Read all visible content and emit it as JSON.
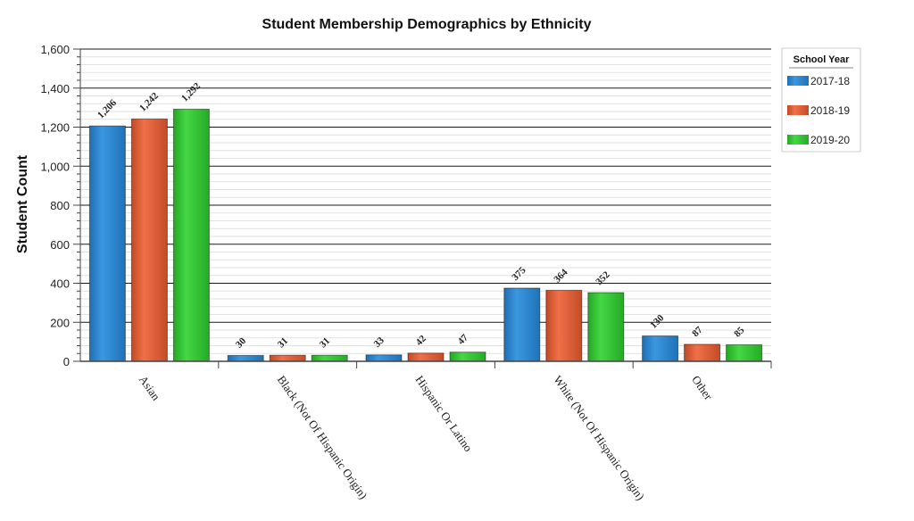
{
  "chart_data": {
    "type": "bar",
    "title": "Student Membership Demographics by Ethnicity",
    "xlabel": "",
    "ylabel": "Student Count",
    "ylim": [
      0,
      1600
    ],
    "yticks": [
      0,
      200,
      400,
      600,
      800,
      1000,
      1200,
      1400,
      1600
    ],
    "ytick_labels": [
      "0",
      "200",
      "400",
      "600",
      "800",
      "1,000",
      "1,200",
      "1,400",
      "1,600"
    ],
    "categories": [
      "Asian",
      "Black (Not Of Hispanic Origin)",
      "Hispanic Or Latino",
      "White (Not Of Hispanic Origin)",
      "Other"
    ],
    "series": [
      {
        "name": "2017-18",
        "color": "#2b8ad6",
        "values": [
          1206,
          30,
          33,
          375,
          130
        ],
        "labels": [
          "1,206",
          "30",
          "33",
          "375",
          "130"
        ]
      },
      {
        "name": "2018-19",
        "color": "#e2603a",
        "values": [
          1242,
          31,
          42,
          364,
          87
        ],
        "labels": [
          "1,242",
          "31",
          "42",
          "364",
          "87"
        ]
      },
      {
        "name": "2019-20",
        "color": "#33c633",
        "values": [
          1292,
          31,
          47,
          352,
          85
        ],
        "labels": [
          "1,292",
          "31",
          "47",
          "352",
          "85"
        ]
      }
    ],
    "legend": {
      "title": "School Year",
      "position": "top-right"
    },
    "grid": true
  }
}
